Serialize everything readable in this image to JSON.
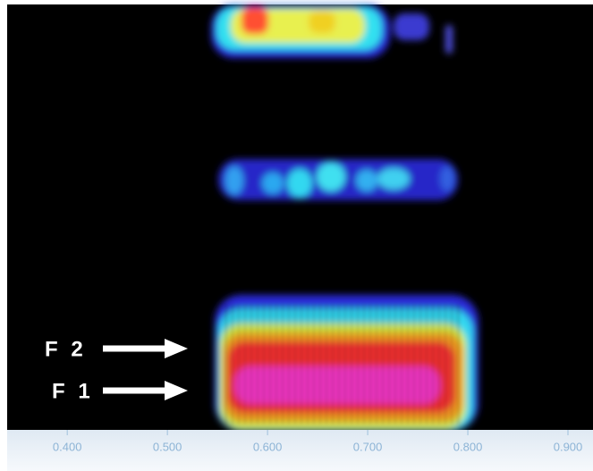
{
  "chart_data": {
    "type": "spectrogram",
    "xlim": [
      0.34,
      0.925
    ],
    "xticks": [
      {
        "value": 0.4,
        "label": "0.400"
      },
      {
        "value": 0.5,
        "label": "0.500"
      },
      {
        "value": 0.6,
        "label": "0.600"
      },
      {
        "value": 0.7,
        "label": "0.700"
      },
      {
        "value": 0.8,
        "label": "0.800"
      },
      {
        "value": 0.9,
        "label": "0.900"
      }
    ],
    "annotations": [
      "F 2",
      "F 1"
    ]
  }
}
